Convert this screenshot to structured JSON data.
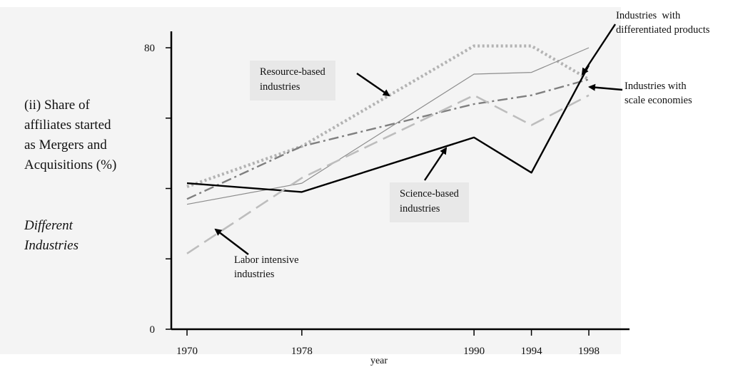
{
  "side_text": {
    "title_lines": [
      "(ii) Share of",
      "affiliates started",
      "as Mergers and",
      "Acquisitions (%)"
    ],
    "subtitle_lines": [
      "Different",
      "Industries"
    ]
  },
  "chart_data": {
    "type": "line",
    "xlabel": "year",
    "ylabel": "",
    "xlim": [
      1969.8,
      1998
    ],
    "ylim": [
      0,
      80
    ],
    "x_ticks": [
      1970,
      1978,
      1990,
      1994,
      1998
    ],
    "y_ticks": [
      0,
      20,
      40,
      60,
      80
    ],
    "y_tick_labels": [
      "0",
      "",
      "",
      "",
      "80"
    ],
    "grid": false,
    "series": [
      {
        "name": "Resource-based industries",
        "color": "#b3b3b3",
        "dash": "dotted",
        "x": [
          1970,
          1978,
          1990,
          1994,
          1998
        ],
        "y": [
          40.5,
          52,
          80.5,
          80.5,
          71
        ]
      },
      {
        "name": "Industries with differentiated products",
        "color": "#8c8c8c",
        "dash": "solid-thin",
        "x": [
          1970,
          1978,
          1990,
          1994,
          1998
        ],
        "y": [
          35.5,
          41.5,
          72.5,
          73,
          80
        ]
      },
      {
        "name": "Industries with scale economies",
        "color": "#7f7f7f",
        "dash": "dash-dot",
        "x": [
          1970,
          1978,
          1990,
          1994,
          1998
        ],
        "y": [
          37,
          52,
          64,
          66.5,
          71
        ]
      },
      {
        "name": "Science-based industries",
        "color": "#000000",
        "dash": "solid",
        "x": [
          1970,
          1978,
          1990,
          1994,
          1998
        ],
        "y": [
          41.5,
          39,
          54.5,
          44.5,
          75
        ]
      },
      {
        "name": "Labor intensive industries",
        "color": "#bdbdbd",
        "dash": "dashed",
        "x": [
          1970,
          1978,
          1990,
          1994,
          1998
        ],
        "y": [
          21.5,
          43,
          66.5,
          58,
          66.5
        ]
      }
    ],
    "annotations": [
      {
        "lines": [
          "Resource-based",
          "industries"
        ],
        "boxed": true
      },
      {
        "lines": [
          "Industries  with",
          "differentiated products"
        ],
        "boxed": false
      },
      {
        "lines": [
          "Industries with",
          "scale economies"
        ],
        "boxed": false
      },
      {
        "lines": [
          "Science-based",
          "industries"
        ],
        "boxed": true
      },
      {
        "lines": [
          "Labor intensive",
          "industries"
        ],
        "boxed": false
      }
    ]
  }
}
